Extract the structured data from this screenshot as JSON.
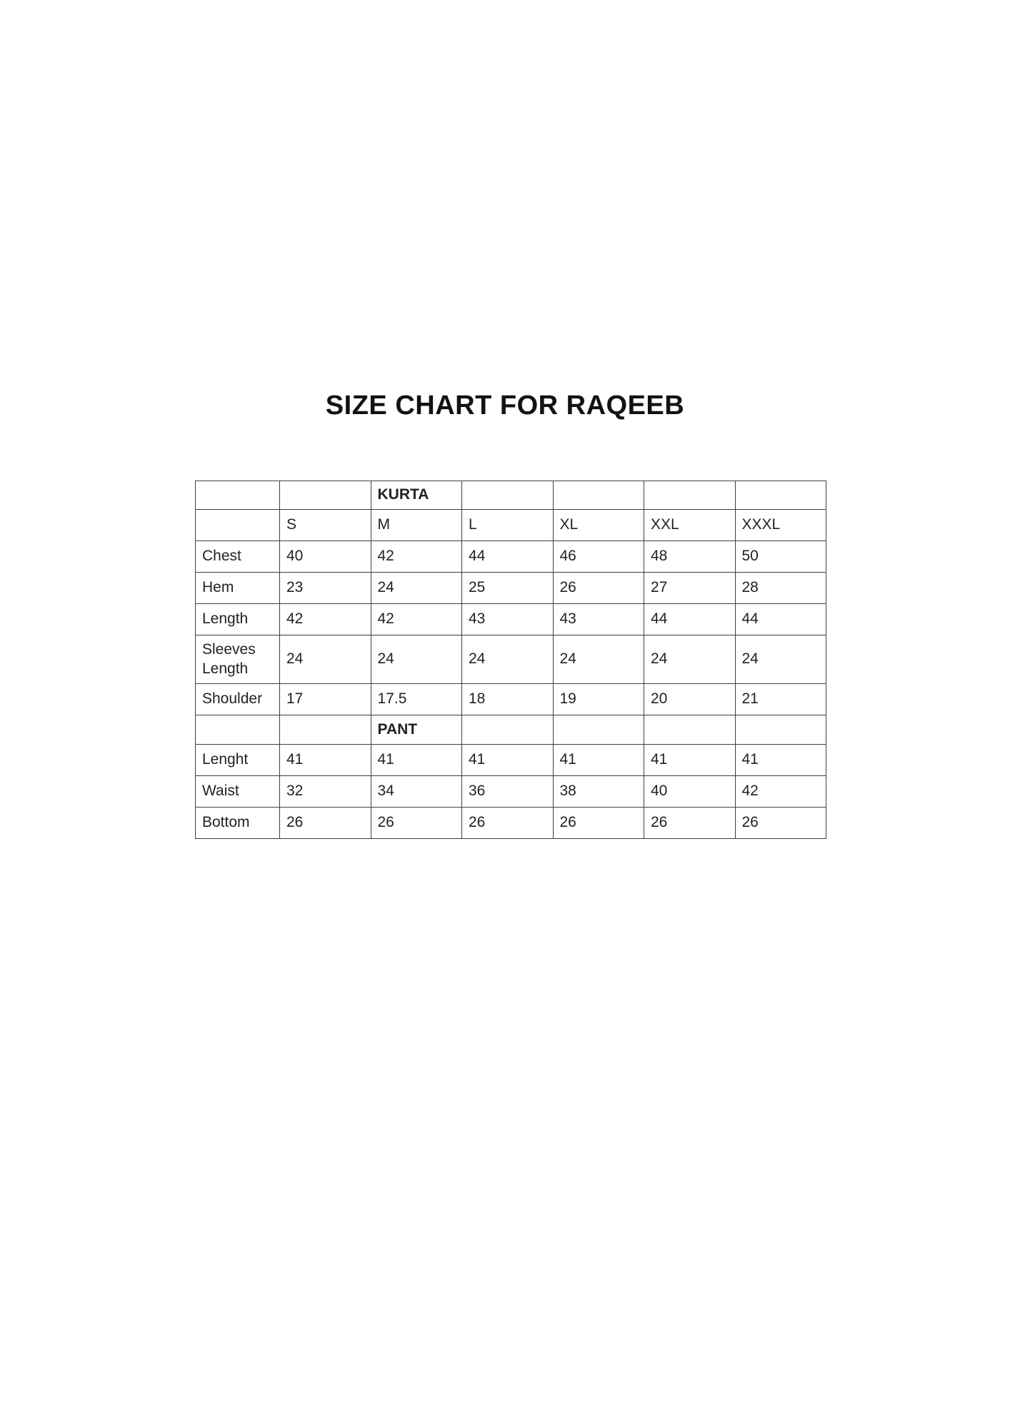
{
  "title": "SIZE CHART FOR RAQEEB",
  "table": {
    "sizes": [
      "S",
      "M",
      "L",
      "XL",
      "XXL",
      "XXXL"
    ],
    "kurta": {
      "section_label": "KURTA",
      "rows": [
        {
          "label": "Chest",
          "values": [
            "40",
            "42",
            "44",
            "46",
            "48",
            "50"
          ]
        },
        {
          "label": "Hem",
          "values": [
            "23",
            "24",
            "25",
            "26",
            "27",
            "28"
          ]
        },
        {
          "label": "Length",
          "values": [
            "42",
            "42",
            "43",
            "43",
            "44",
            "44"
          ]
        },
        {
          "label": "Sleeves Length",
          "values": [
            "24",
            "24",
            "24",
            "24",
            "24",
            "24"
          ]
        },
        {
          "label": "Shoulder",
          "values": [
            "17",
            "17.5",
            "18",
            "19",
            "20",
            "21"
          ]
        }
      ]
    },
    "pant": {
      "section_label": "PANT",
      "rows": [
        {
          "label": "Lenght",
          "values": [
            "41",
            "41",
            "41",
            "41",
            "41",
            "41"
          ]
        },
        {
          "label": "Waist",
          "values": [
            "32",
            "34",
            "36",
            "38",
            "40",
            "42"
          ]
        },
        {
          "label": "Bottom",
          "values": [
            "26",
            "26",
            "26",
            "26",
            "26",
            "26"
          ]
        }
      ]
    }
  }
}
